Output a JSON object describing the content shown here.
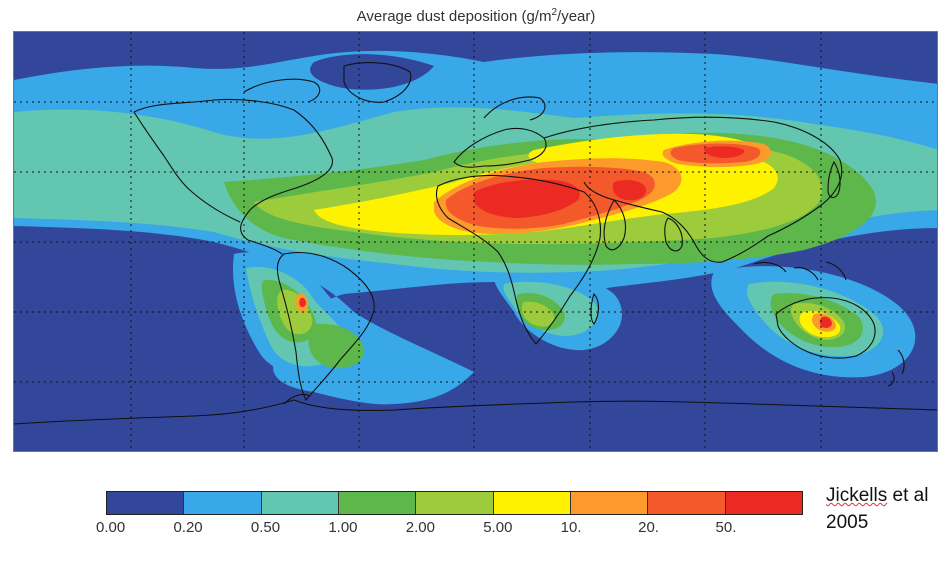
{
  "title": {
    "prefix": "Average dust deposition (g/m",
    "superscript": "2",
    "suffix": "/year)"
  },
  "colorbar": {
    "colors": [
      "#33479a",
      "#38a8e8",
      "#62c6b0",
      "#5db74a",
      "#9ccc3c",
      "#fef200",
      "#fd9a2c",
      "#f4592b",
      "#ec2a24"
    ],
    "tick_labels": [
      "0.00",
      "0.20",
      "0.50",
      "1.00",
      "2.00",
      "5.00",
      "10.",
      "20.",
      "50."
    ]
  },
  "credit": {
    "line1_name": "Jickells",
    "line1_rest": " et al",
    "line2": "2005"
  }
}
